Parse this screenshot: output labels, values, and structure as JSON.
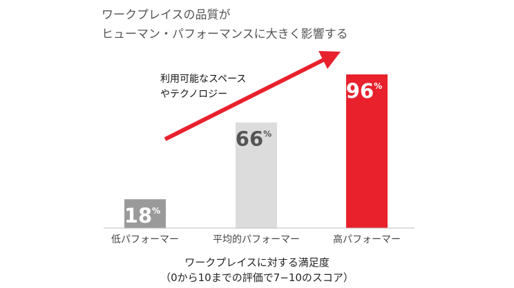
{
  "title": {
    "line1": "ワークプレイスの品質が",
    "line2": "ヒューマン・パフォーマンスに大きく影響する"
  },
  "colors": {
    "low": "#9a9a9a",
    "mid": "#dcdcdc",
    "high": "#e8212d",
    "arrow": "#e8212d",
    "label_dark": "#ffffff",
    "label_mid": "#555555"
  },
  "chart_data": {
    "type": "bar",
    "categories": [
      "低パフォーマー",
      "平均的パフォーマー",
      "高パフォーマー"
    ],
    "values": [
      18,
      66,
      96
    ],
    "value_labels": [
      "18",
      "66",
      "96"
    ],
    "value_suffix": "%",
    "ylim": [
      0,
      100
    ],
    "arrow_annotation": {
      "line1": "利用可能なスペース",
      "line2": "やテクノロジー"
    },
    "xlabel": {
      "line1": "ワークプレイスに対する満足度",
      "line2": "（0から10までの評価で7−10のスコア）"
    },
    "grid": false,
    "legend": "none"
  }
}
